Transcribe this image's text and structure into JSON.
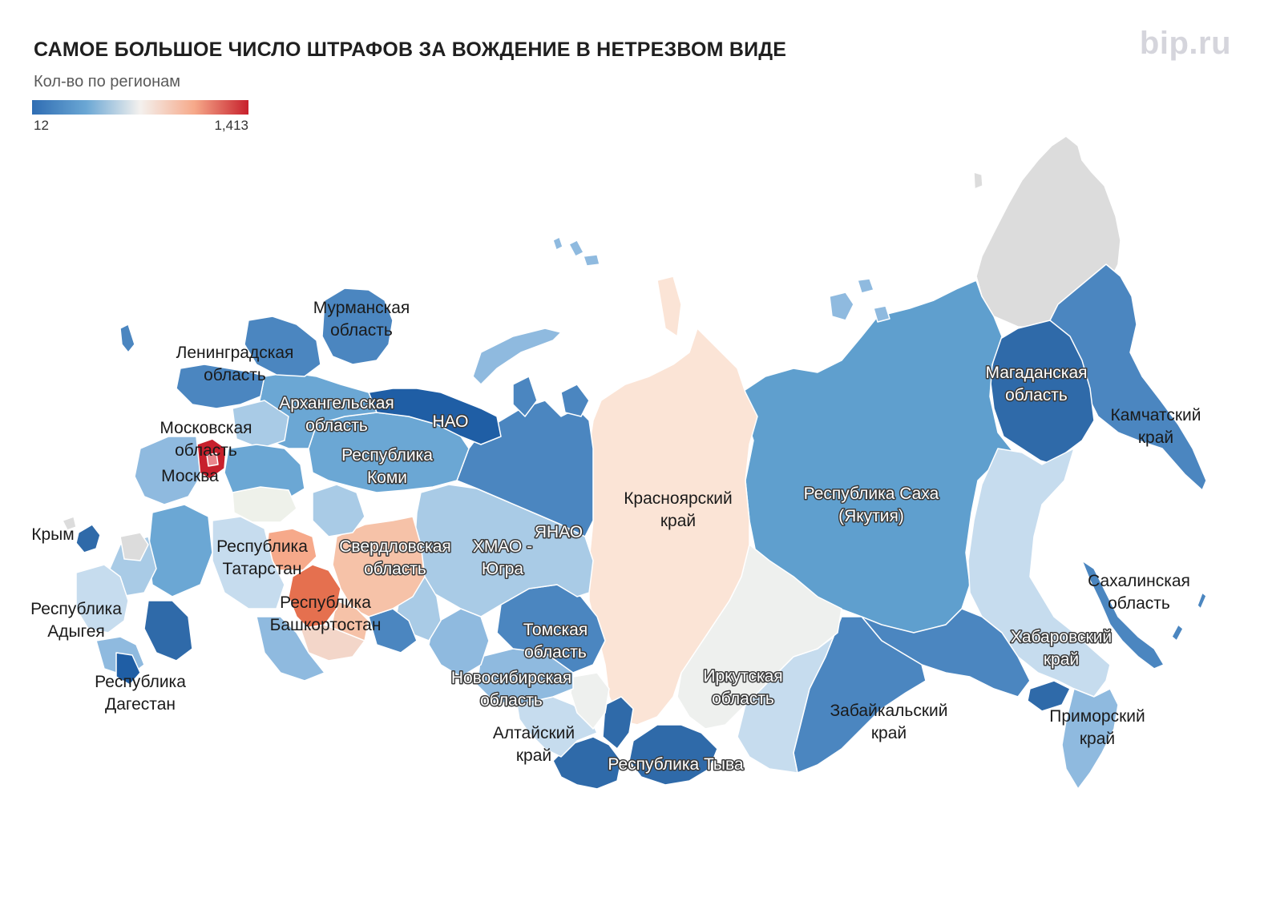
{
  "title": "САМОЕ БОЛЬШОЕ ЧИСЛО ШТРАФОВ ЗА ВОЖДЕНИЕ В НЕТРЕЗВОМ ВИДЕ",
  "subtitle": "Кол-во по регионам",
  "brand": "bip.ru",
  "legend": {
    "min": "12",
    "max": "1,413",
    "colors": [
      "#2f6db3",
      "#6ba7d4",
      "#f4f1ee",
      "#f6a98a",
      "#c7202c"
    ]
  },
  "colors": {
    "no_data": "#dcdcdc",
    "region_border": "#ffffff"
  },
  "regions": [
    {
      "id": "murmansk",
      "name": [
        "Мурманская",
        "область"
      ]
    },
    {
      "id": "leningrad",
      "name": [
        "Ленинградская",
        "область"
      ]
    },
    {
      "id": "arkhangelsk",
      "name": [
        "Архангельская",
        "область"
      ]
    },
    {
      "id": "nao",
      "name": [
        "НАО"
      ]
    },
    {
      "id": "moscow-oblast",
      "name": [
        "Московская",
        "область"
      ]
    },
    {
      "id": "moscow",
      "name": [
        "Москва"
      ]
    },
    {
      "id": "komi",
      "name": [
        "Республика",
        "Коми"
      ]
    },
    {
      "id": "crimea",
      "name": [
        "Крым"
      ]
    },
    {
      "id": "tatarstan",
      "name": [
        "Республика",
        "Татарстан"
      ]
    },
    {
      "id": "sverdlovsk",
      "name": [
        "Свердловская",
        "область"
      ]
    },
    {
      "id": "hmao",
      "name": [
        "ХМАО -",
        "Югра"
      ]
    },
    {
      "id": "yanao",
      "name": [
        "ЯНАО"
      ]
    },
    {
      "id": "krasnoyarsk",
      "name": [
        "Красноярский",
        "край"
      ]
    },
    {
      "id": "yakutia",
      "name": [
        "Республика Саха",
        "(Якутия)"
      ]
    },
    {
      "id": "magadan",
      "name": [
        "Магаданская",
        "область"
      ]
    },
    {
      "id": "kamchatka",
      "name": [
        "Камчатский",
        "край"
      ]
    },
    {
      "id": "adygea",
      "name": [
        "Республика",
        "Адыгея"
      ]
    },
    {
      "id": "bashkortostan",
      "name": [
        "Республика",
        "Башкортостан"
      ]
    },
    {
      "id": "dagestan",
      "name": [
        "Республика",
        "Дагестан"
      ]
    },
    {
      "id": "tomsk",
      "name": [
        "Томская",
        "область"
      ]
    },
    {
      "id": "novosibirsk",
      "name": [
        "Новосибирская",
        "область"
      ]
    },
    {
      "id": "irkutsk",
      "name": [
        "Иркутская",
        "область"
      ]
    },
    {
      "id": "altai-krai",
      "name": [
        "Алтайский",
        "край"
      ]
    },
    {
      "id": "tyva",
      "name": [
        "Республика Тыва"
      ]
    },
    {
      "id": "zabaikalsky",
      "name": [
        "Забайкальский",
        "край"
      ]
    },
    {
      "id": "khabarovsk",
      "name": [
        "Хабаровский",
        "край"
      ]
    },
    {
      "id": "sakhalin",
      "name": [
        "Сахалинская",
        "область"
      ]
    },
    {
      "id": "primorsky",
      "name": [
        "Приморский",
        "край"
      ]
    }
  ]
}
